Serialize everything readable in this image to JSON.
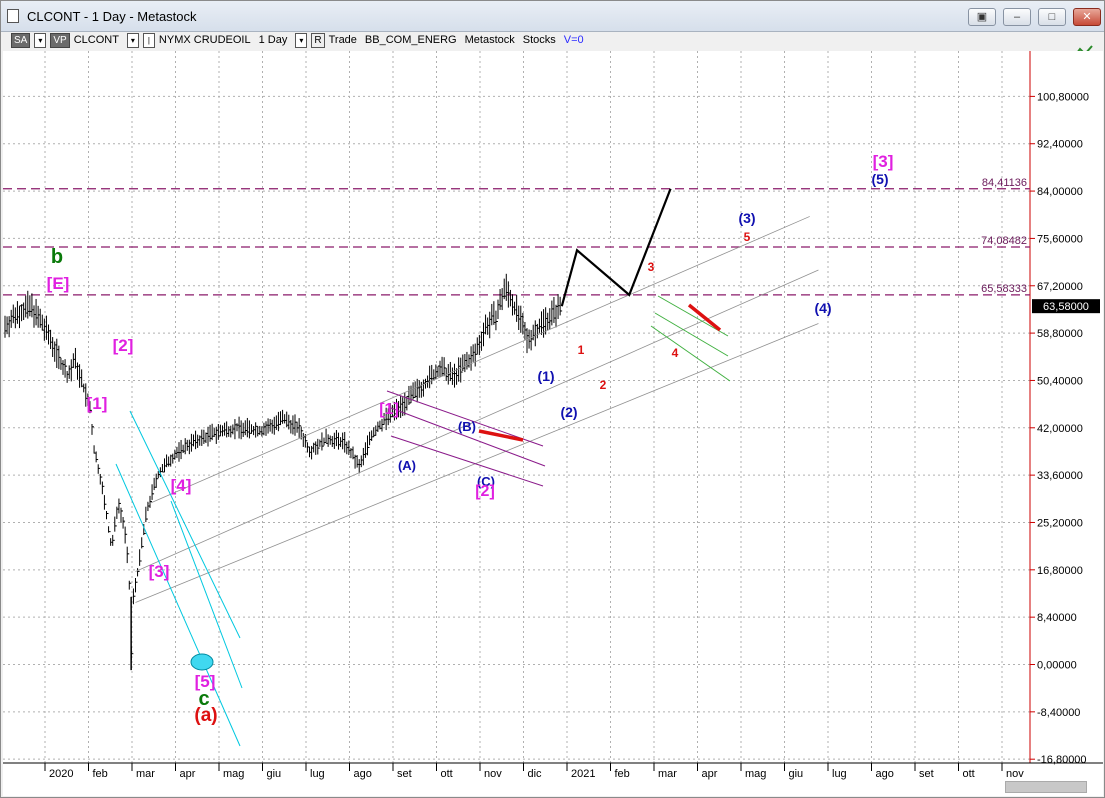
{
  "window": {
    "title": "CLCONT - 1 Day - Metastock",
    "buttons": [
      "restore",
      "minimize",
      "maximize",
      "close"
    ]
  },
  "toolbar": {
    "sa": "SA",
    "vp": "VP",
    "symbol": "CLCONT",
    "exchange": "NYMX CRUDEOIL",
    "period": "1 Day",
    "r": "R",
    "trade": "Trade",
    "sector": "BB_COM_ENERG",
    "app": "Metastock",
    "type": "Stocks",
    "volume": "V=0"
  },
  "colors": {
    "grid": "#b0b0b0",
    "price_bars": "#000000",
    "magenta": "#e020e0",
    "navy": "#1010b0",
    "red": "#dd1111",
    "green": "#0a7a0a",
    "dashed": "#8a1a6a",
    "cyan": "#00c8e0",
    "axis_red": "#cc0000"
  },
  "chart_data": {
    "type": "ohlc",
    "symbol": "CLCONT",
    "interval": "1 Day",
    "y_ticks": [
      "100,80000",
      "92,40000",
      "84,00000",
      "75,60000",
      "67,20000",
      "58,80000",
      "50,40000",
      "42,00000",
      "33,60000",
      "25,20000",
      "16,80000",
      "8,40000",
      "0,00000",
      "-8,40000",
      "-16,80000"
    ],
    "x_ticks": [
      "2020",
      "feb",
      "mar",
      "apr",
      "mag",
      "giu",
      "lug",
      "ago",
      "set",
      "ott",
      "nov",
      "dic",
      "2021",
      "feb",
      "mar",
      "apr",
      "mag",
      "giu",
      "lug",
      "ago",
      "set",
      "ott",
      "nov"
    ],
    "ylim": [
      -16.8,
      109
    ],
    "last_price": "63,58000",
    "hlines": [
      {
        "label": "84,41136",
        "value": 84.41
      },
      {
        "label": "74,08482",
        "value": 74.08
      },
      {
        "label": "65,58333",
        "value": 65.58
      }
    ],
    "close_series": [
      [
        0.0,
        60.0
      ],
      [
        0.3,
        62.5
      ],
      [
        0.6,
        63.5
      ],
      [
        1.0,
        58.5
      ],
      [
        1.2,
        55.0
      ],
      [
        1.45,
        51.0
      ],
      [
        1.6,
        54.2
      ],
      [
        1.75,
        50.5
      ],
      [
        1.95,
        45.5
      ],
      [
        2.05,
        38.0
      ],
      [
        2.2,
        33.0
      ],
      [
        2.45,
        20.5
      ],
      [
        2.6,
        29.0
      ],
      [
        2.75,
        24.0
      ],
      [
        2.85,
        16.0
      ],
      [
        2.9,
        1.0
      ],
      [
        2.95,
        12.0
      ],
      [
        3.1,
        19.0
      ],
      [
        3.25,
        27.0
      ],
      [
        3.5,
        33.5
      ],
      [
        3.8,
        36.5
      ],
      [
        4.2,
        39.0
      ],
      [
        4.8,
        41.0
      ],
      [
        5.3,
        42.0
      ],
      [
        5.9,
        41.5
      ],
      [
        6.4,
        43.5
      ],
      [
        6.75,
        42.0
      ],
      [
        7.0,
        38.0
      ],
      [
        7.4,
        40.0
      ],
      [
        7.8,
        39.5
      ],
      [
        8.15,
        35.0
      ],
      [
        8.4,
        40.5
      ],
      [
        8.8,
        44.0
      ],
      [
        9.2,
        46.5
      ],
      [
        9.6,
        49.5
      ],
      [
        10.0,
        52.5
      ],
      [
        10.3,
        51.0
      ],
      [
        10.6,
        53.5
      ],
      [
        10.8,
        55.0
      ],
      [
        11.05,
        60.0
      ],
      [
        11.3,
        62.0
      ],
      [
        11.5,
        67.0
      ],
      [
        11.8,
        62.0
      ],
      [
        12.0,
        57.5
      ],
      [
        12.4,
        61.0
      ],
      [
        12.8,
        63.58
      ]
    ],
    "projection": [
      [
        12.8,
        63.58
      ],
      [
        13.15,
        73.5
      ],
      [
        14.35,
        65.58
      ],
      [
        15.3,
        84.41
      ]
    ],
    "labels": [
      {
        "text": "[E]",
        "color": "magenta"
      },
      {
        "text": "b",
        "color": "green"
      },
      {
        "text": "[1]",
        "color": "magenta"
      },
      {
        "text": "[2]",
        "color": "magenta"
      },
      {
        "text": "[3]",
        "color": "magenta"
      },
      {
        "text": "[4]",
        "color": "magenta"
      },
      {
        "text": "[5]",
        "color": "magenta"
      },
      {
        "text": "c",
        "color": "green"
      },
      {
        "text": "(a)",
        "color": "red"
      },
      {
        "text": "[1]",
        "color": "magenta"
      },
      {
        "text": "(A)",
        "color": "navy"
      },
      {
        "text": "(B)",
        "color": "navy"
      },
      {
        "text": "(C)",
        "color": "navy"
      },
      {
        "text": "[2]",
        "color": "magenta"
      },
      {
        "text": "(1)",
        "color": "navy"
      },
      {
        "text": "(2)",
        "color": "navy"
      },
      {
        "text": "1",
        "color": "red"
      },
      {
        "text": "2",
        "color": "red"
      },
      {
        "text": "3",
        "color": "red"
      },
      {
        "text": "4",
        "color": "red"
      },
      {
        "text": "5",
        "color": "red"
      },
      {
        "text": "(3)",
        "color": "navy"
      },
      {
        "text": "(4)",
        "color": "navy"
      },
      {
        "text": "(5)",
        "color": "navy"
      },
      {
        "text": "[3]",
        "color": "magenta"
      }
    ]
  }
}
